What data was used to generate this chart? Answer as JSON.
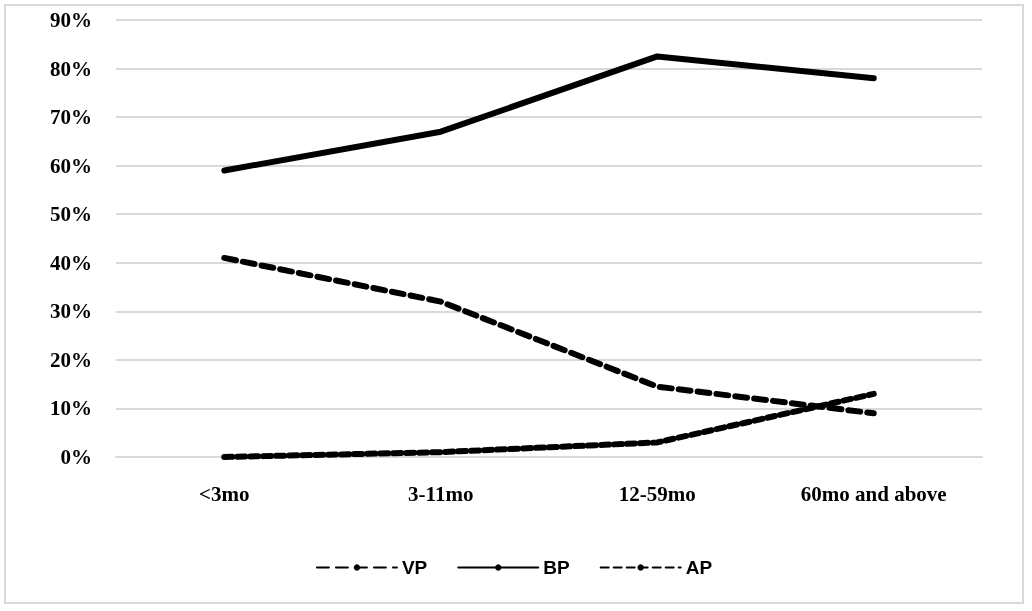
{
  "chart_data": {
    "type": "line",
    "categories": [
      "<3mo",
      "3-11mo",
      "12-59mo",
      "60mo and above"
    ],
    "series": [
      {
        "name": "VP",
        "color": "#000000",
        "line_style": "dashed",
        "values": [
          41,
          32,
          14.5,
          9
        ]
      },
      {
        "name": "BP",
        "color": "#000000",
        "line_style": "solid",
        "values": [
          59,
          67,
          82.5,
          78
        ]
      },
      {
        "name": "AP",
        "color": "#000000",
        "line_style": "dotted",
        "values": [
          0,
          1,
          3,
          13
        ]
      }
    ],
    "ylim": [
      0,
      90
    ],
    "yticks": [
      {
        "value": 0,
        "label": "0%"
      },
      {
        "value": 10,
        "label": "10%"
      },
      {
        "value": 20,
        "label": "20%"
      },
      {
        "value": 30,
        "label": "30%"
      },
      {
        "value": 40,
        "label": "40%"
      },
      {
        "value": 50,
        "label": "50%"
      },
      {
        "value": 60,
        "label": "60%"
      },
      {
        "value": 70,
        "label": "70%"
      },
      {
        "value": 80,
        "label": "80%"
      },
      {
        "value": 90,
        "label": "90%"
      }
    ],
    "grid": "y",
    "legend": "bottom",
    "marker": "none"
  }
}
